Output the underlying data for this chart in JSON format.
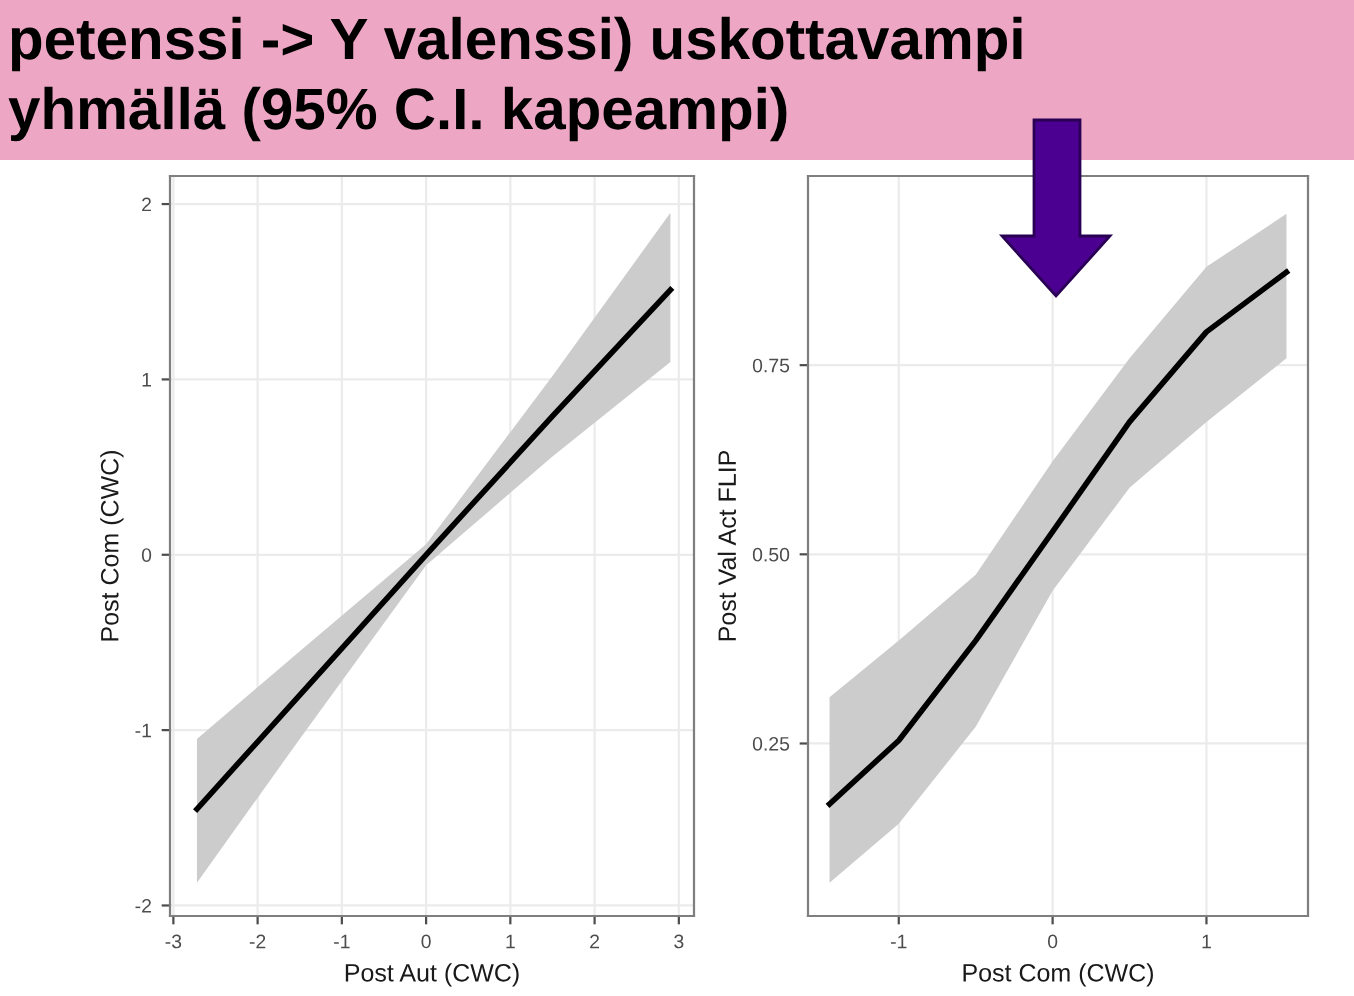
{
  "chart_data": [
    {
      "type": "line",
      "title": "petenssi -> Y valenssi) uskottavampi",
      "subtitle": "yhmällä (95% C.I. kapeampi)",
      "xlabel": "Post Aut (CWC)",
      "ylabel": "Post Com (CWC)",
      "xlim": [
        -3.04,
        3.18
      ],
      "ylim": [
        -2.06,
        2.16
      ],
      "xticks": [
        -3,
        -2,
        -1,
        0,
        1,
        2,
        3
      ],
      "yticks": [
        -2,
        -1,
        0,
        1,
        2
      ],
      "grid": true,
      "series": [
        {
          "color": "#000000",
          "x": [
            -2.72,
            -1.5,
            0,
            1.5,
            2.9
          ],
          "values": [
            -1.45,
            -0.8,
            0,
            0.79,
            1.51
          ],
          "lower": [
            -1.87,
            -1.05,
            -0.06,
            0.56,
            1.1
          ],
          "upper": [
            -1.05,
            -0.55,
            0.06,
            1.02,
            1.95
          ]
        }
      ]
    },
    {
      "type": "line",
      "xlabel": "Post Com (CWC)",
      "ylabel": "Post Val Act FLIP",
      "xlim": [
        -1.59,
        1.66
      ],
      "ylim": [
        0.022,
        1.0
      ],
      "xticks": [
        -1,
        0,
        1
      ],
      "yticks": [
        {
          "value": 0.25,
          "label": "0.25"
        },
        {
          "value": 0.5,
          "label": "0.50"
        },
        {
          "value": 0.75,
          "label": "0.75"
        }
      ],
      "grid": true,
      "series": [
        {
          "color": "#000000",
          "x": [
            -1.45,
            -1,
            -0.5,
            0,
            0.5,
            1,
            1.52
          ],
          "values": [
            0.17,
            0.254,
            0.386,
            0.53,
            0.675,
            0.794,
            0.873
          ],
          "lower": [
            0.066,
            0.144,
            0.272,
            0.452,
            0.588,
            0.675,
            0.759
          ],
          "upper": [
            0.311,
            0.386,
            0.473,
            0.623,
            0.759,
            0.88,
            0.95
          ]
        }
      ]
    }
  ]
}
